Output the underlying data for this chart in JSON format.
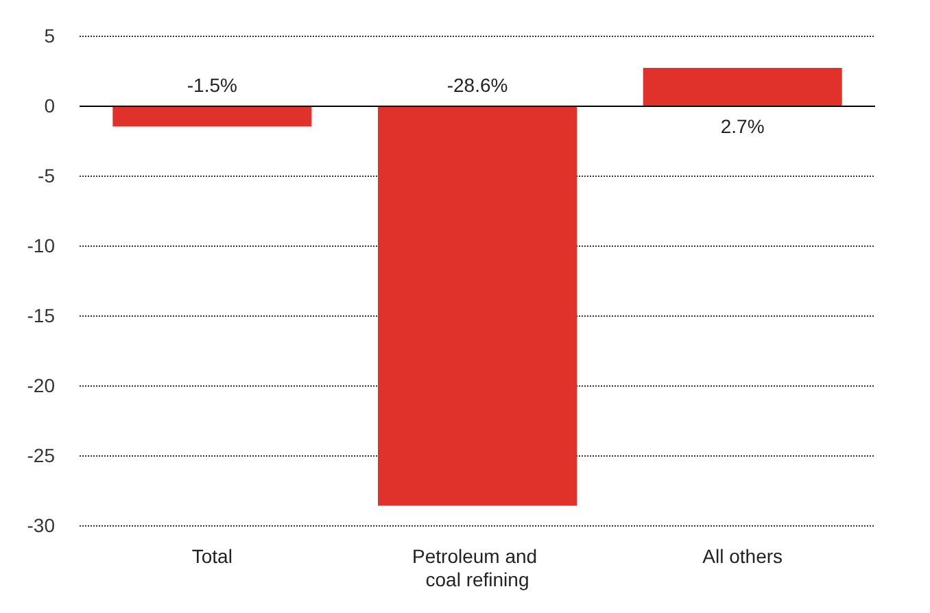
{
  "chart_data": {
    "type": "bar",
    "categories": [
      "Total",
      "Petroleum and coal refining",
      "All others"
    ],
    "values": [
      -1.5,
      -28.6,
      2.7
    ],
    "color": "#e0322a",
    "value_labels": [
      "-1.5%",
      "-28.6%",
      "2.7%"
    ],
    "ylim": [
      -30,
      5
    ],
    "yticks": [
      5,
      0,
      -5,
      -10,
      -15,
      -20,
      -25,
      -30
    ],
    "grid": "y"
  }
}
